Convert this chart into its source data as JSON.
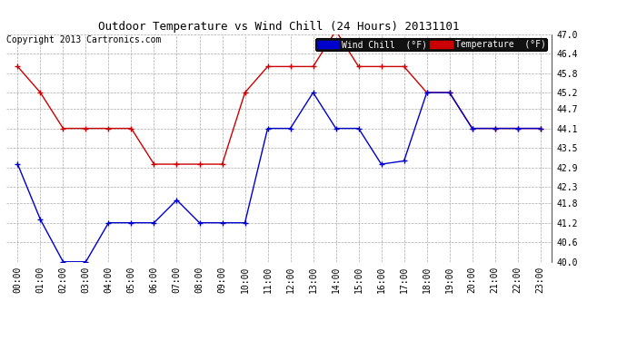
{
  "title": "Outdoor Temperature vs Wind Chill (24 Hours) 20131101",
  "copyright": "Copyright 2013 Cartronics.com",
  "hours": [
    "00:00",
    "01:00",
    "02:00",
    "03:00",
    "04:00",
    "05:00",
    "06:00",
    "07:00",
    "08:00",
    "09:00",
    "10:00",
    "11:00",
    "12:00",
    "13:00",
    "14:00",
    "15:00",
    "16:00",
    "17:00",
    "18:00",
    "19:00",
    "20:00",
    "21:00",
    "22:00",
    "23:00"
  ],
  "temperature": [
    46.0,
    45.2,
    44.1,
    44.1,
    44.1,
    44.1,
    43.0,
    43.0,
    43.0,
    43.0,
    45.2,
    46.0,
    46.0,
    46.0,
    47.1,
    46.0,
    46.0,
    46.0,
    45.2,
    45.2,
    44.1,
    44.1,
    44.1,
    44.1
  ],
  "wind_chill": [
    43.0,
    41.3,
    40.0,
    40.0,
    41.2,
    41.2,
    41.2,
    41.9,
    41.2,
    41.2,
    41.2,
    44.1,
    44.1,
    45.2,
    44.1,
    44.1,
    43.0,
    43.1,
    45.2,
    45.2,
    44.1,
    44.1,
    44.1,
    44.1
  ],
  "temp_color": "#cc0000",
  "wind_color": "#0000cc",
  "ylim_min": 40.0,
  "ylim_max": 47.0,
  "ytick_values": [
    40.0,
    40.6,
    41.2,
    41.8,
    42.3,
    42.9,
    43.5,
    44.1,
    44.7,
    45.2,
    45.8,
    46.4,
    47.0
  ],
  "ytick_labels": [
    "40.0",
    "40.6",
    "41.2",
    "41.8",
    "42.3",
    "42.9",
    "43.5",
    "44.1",
    "44.7",
    "45.2",
    "45.8",
    "46.4",
    "47.0"
  ],
  "bg_color": "#ffffff",
  "grid_color": "#aaaaaa",
  "legend_wind_bg": "#0000cc",
  "legend_temp_bg": "#cc0000",
  "legend_wind_text": "Wind Chill  (°F)",
  "legend_temp_text": "Temperature  (°F)",
  "title_fontsize": 9,
  "tick_fontsize": 7,
  "copyright_fontsize": 7
}
